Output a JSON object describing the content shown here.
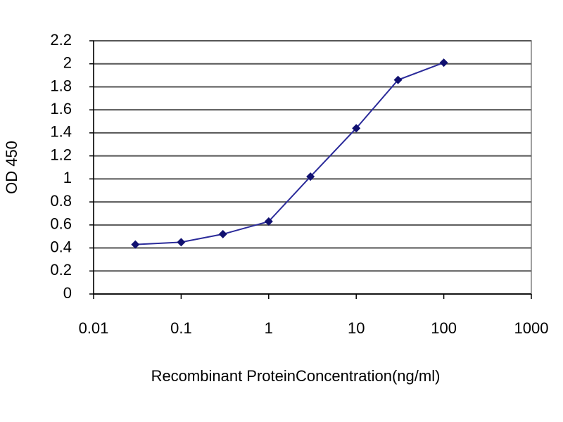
{
  "chart_data": {
    "type": "line",
    "xlabel": "Recombinant ProteinConcentration(ng/ml)",
    "ylabel": "OD 450",
    "x": [
      0.03,
      0.1,
      0.3,
      1,
      3,
      10,
      30,
      100
    ],
    "series": [
      {
        "color": "#2b2b9a",
        "marker_color": "#101070",
        "values": [
          0.43,
          0.45,
          0.52,
          0.63,
          1.02,
          1.44,
          1.86,
          2.01
        ]
      }
    ],
    "xscale": "log",
    "xlim": [
      0.01,
      1000
    ],
    "xticks": [
      0.01,
      0.1,
      1,
      10,
      100,
      1000
    ],
    "ylim": [
      0,
      2.2
    ],
    "yticks": [
      0,
      0.2,
      0.4,
      0.6,
      0.8,
      1,
      1.2,
      1.4,
      1.6,
      1.8,
      2,
      2.2
    ],
    "grid": true
  }
}
